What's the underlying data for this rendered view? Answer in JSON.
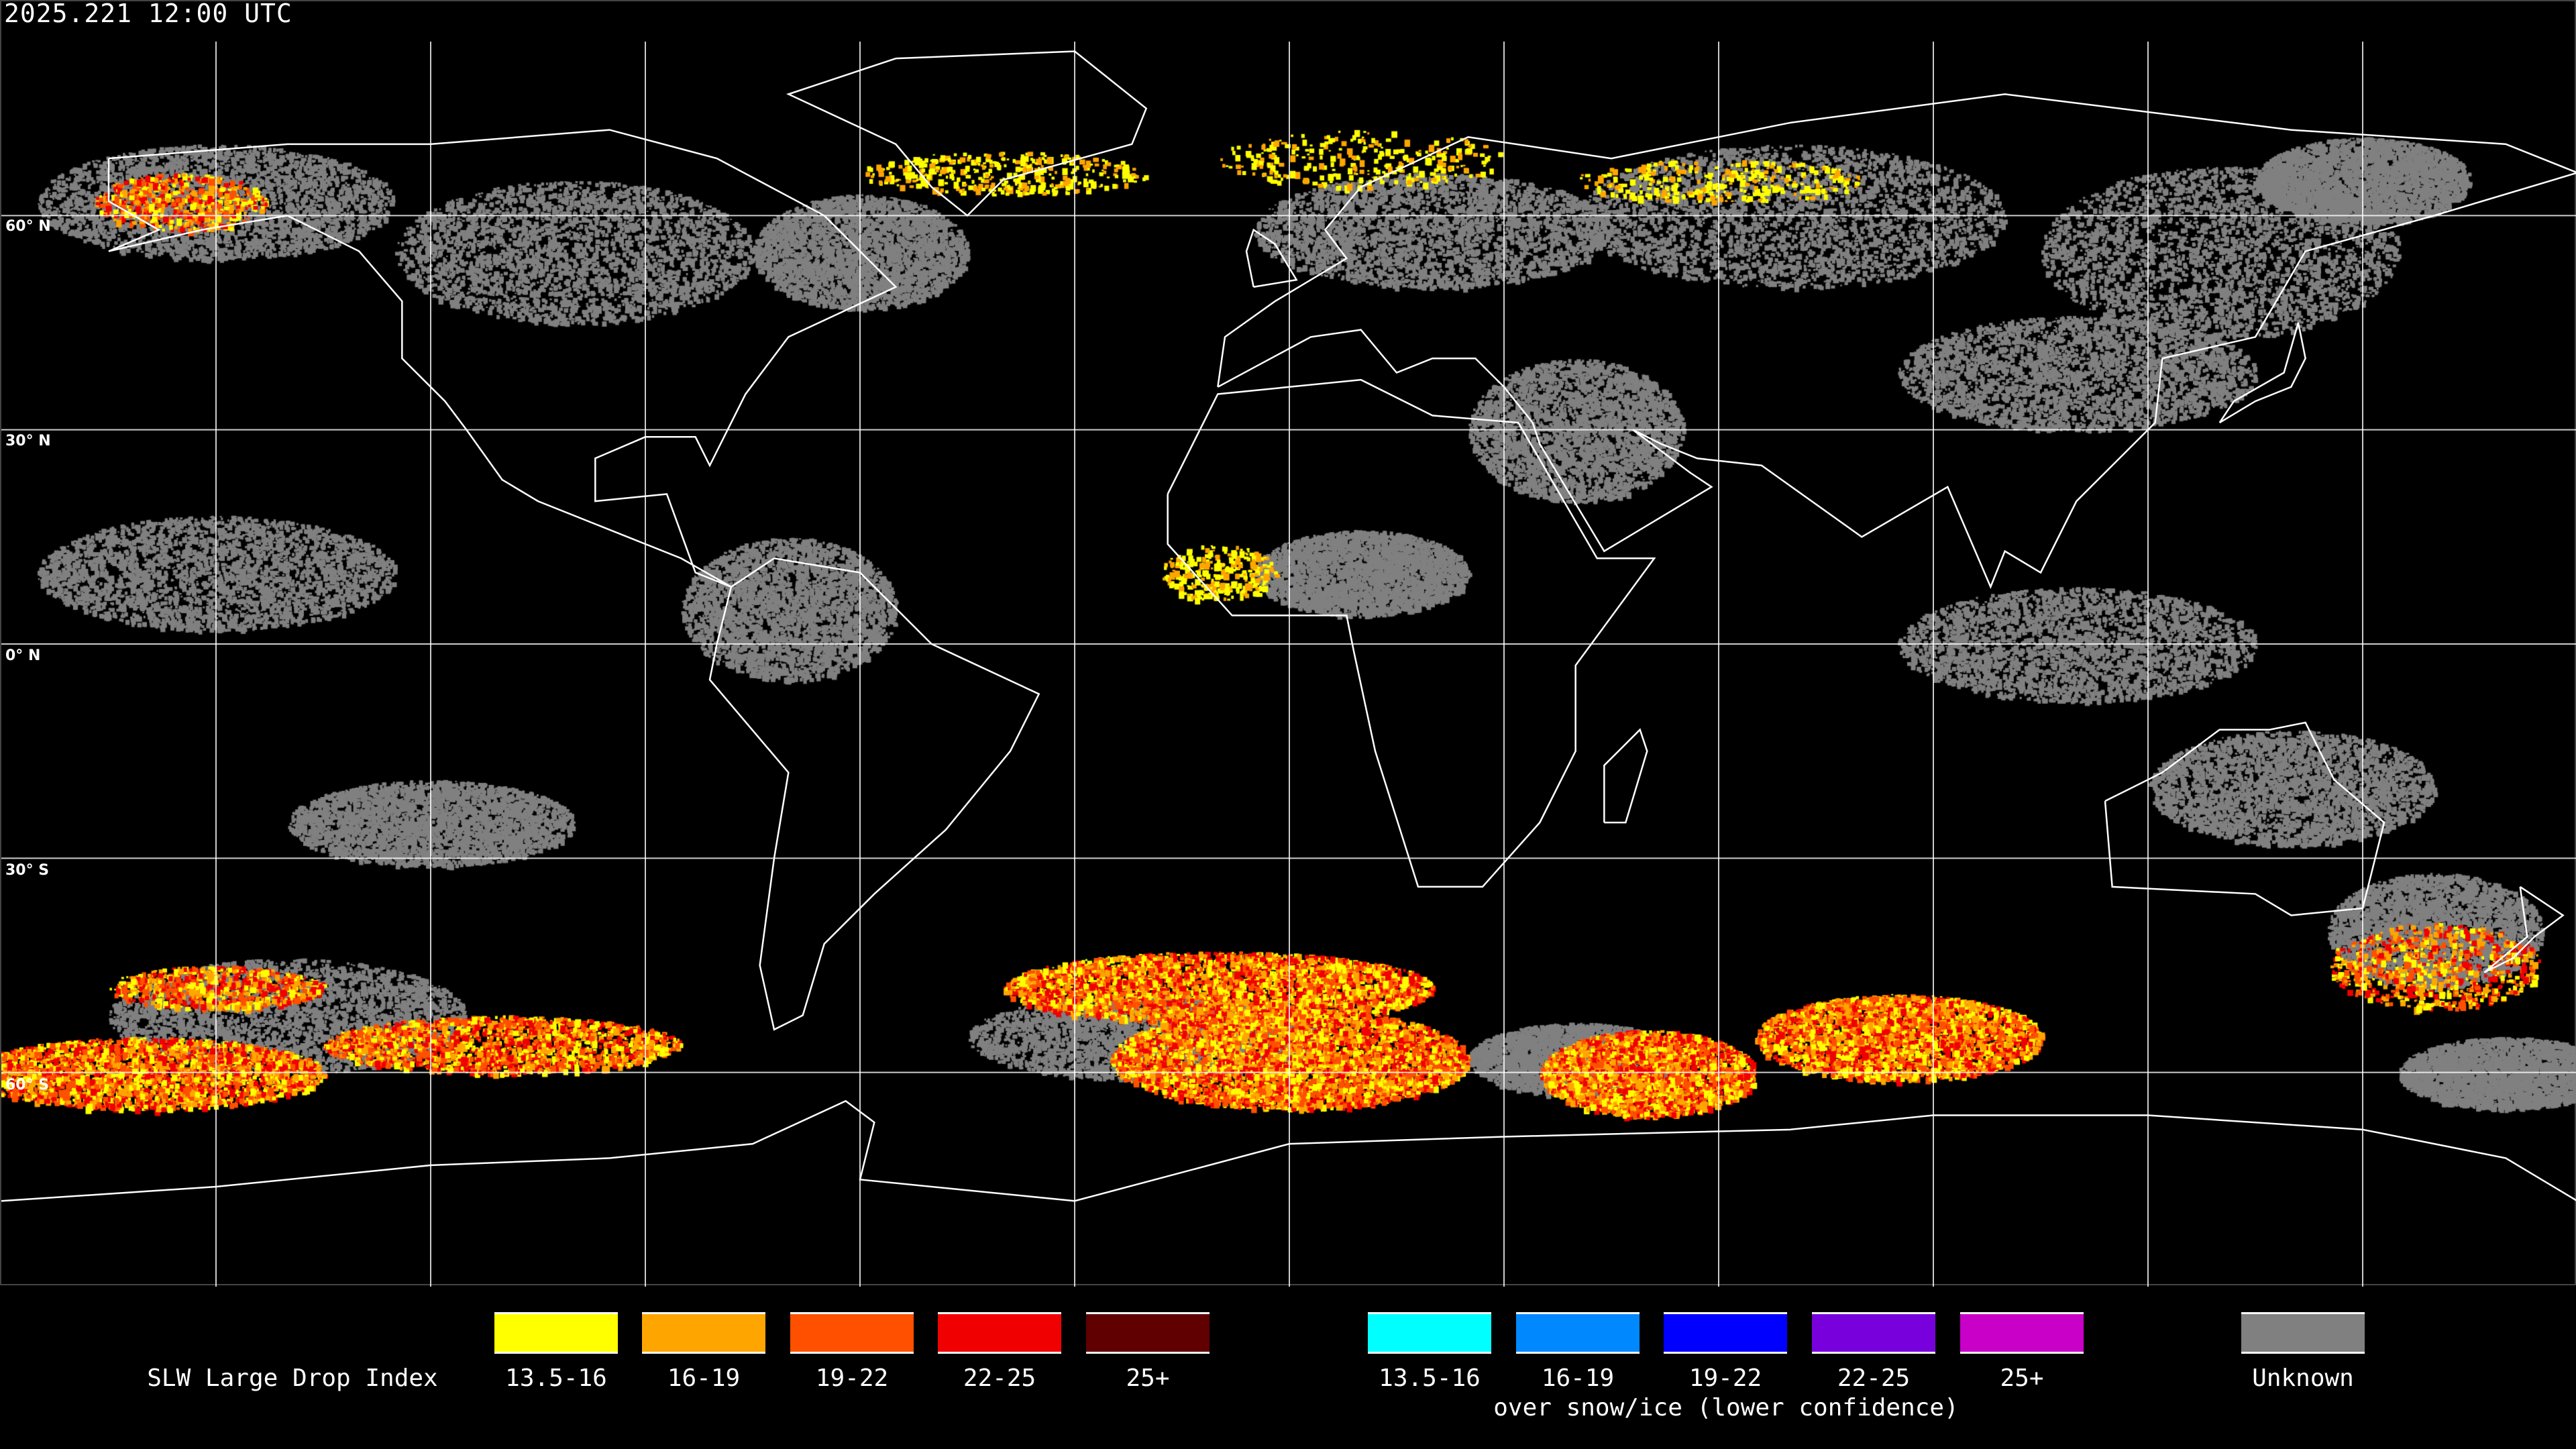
{
  "timestamp": "2025.221 12:00 UTC",
  "map": {
    "projection": "equirectangular",
    "graticule_step_deg": 30,
    "lat_labels": [
      "60° N",
      "30° N",
      "0° N",
      "30° S",
      "60° S"
    ],
    "background": "#000000",
    "coastline_color": "#ffffff",
    "grid_color": "#ffffff"
  },
  "legend": {
    "title": "SLW Large Drop Index",
    "liquid": [
      {
        "label": "13.5-16",
        "color": "#ffff00"
      },
      {
        "label": "16-19",
        "color": "#ffa500"
      },
      {
        "label": "19-22",
        "color": "#ff5000"
      },
      {
        "label": "22-25",
        "color": "#f00000"
      },
      {
        "label": "25+",
        "color": "#600000"
      }
    ],
    "snow_ice": [
      {
        "label": "13.5-16",
        "color": "#00ffff"
      },
      {
        "label": "16-19",
        "color": "#0088ff"
      },
      {
        "label": "19-22",
        "color": "#0000ff"
      },
      {
        "label": "22-25",
        "color": "#7800dc"
      },
      {
        "label": "25+",
        "color": "#c800c8"
      }
    ],
    "snow_ice_caption": "over snow/ice (lower confidence)",
    "unknown": {
      "label": "Unknown",
      "color": "#808080"
    }
  }
}
